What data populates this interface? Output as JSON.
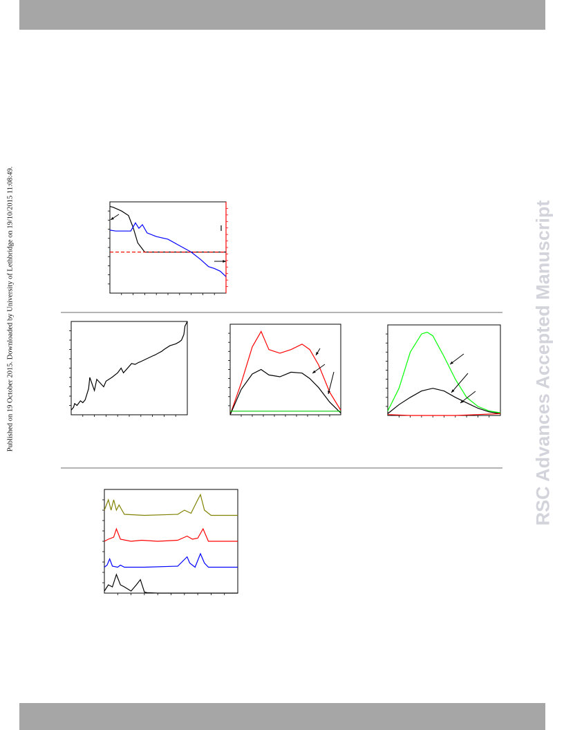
{
  "header": {
    "band_color": "#a6a6a6"
  },
  "side_notice": "Published on 19 October 2015. Downloaded by University of Lethbridge on 19/10/2015 11:08:49.",
  "watermark": "RSC Advances Accepted Manuscript",
  "colors": {
    "black": "#000000",
    "blue": "#0000ff",
    "red": "#ff0000",
    "green": "#00cc00",
    "olive": "#808000",
    "rule": "#b3b3b3",
    "watermark": "#d3d3db"
  },
  "figures": {
    "panel_a": {
      "chart_data": {
        "type": "line",
        "dual_axis": true,
        "series": [
          {
            "color": "#000000",
            "x": [
              0,
              0.03,
              0.1,
              0.16,
              0.2,
              0.24,
              0.3,
              0.38,
              0.45,
              0.5,
              0.6,
              0.7,
              0.8,
              0.9,
              1
            ],
            "y": [
              0.95,
              0.94,
              0.9,
              0.85,
              0.72,
              0.55,
              0.45,
              0.45,
              0.45,
              0.45,
              0.45,
              0.45,
              0.45,
              0.45,
              0.45
            ]
          },
          {
            "color": "#0000ff",
            "x": [
              0,
              0.05,
              0.12,
              0.18,
              0.22,
              0.25,
              0.28,
              0.32,
              0.4,
              0.5,
              0.6,
              0.7,
              0.78,
              0.85,
              0.9,
              0.95,
              1
            ],
            "y": [
              0.69,
              0.68,
              0.68,
              0.68,
              0.77,
              0.71,
              0.75,
              0.66,
              0.62,
              0.59,
              0.52,
              0.45,
              0.37,
              0.29,
              0.27,
              0.24,
              0.18
            ]
          },
          {
            "color": "#ff0000",
            "style": "dashed",
            "x": [
              0,
              1
            ],
            "y": [
              0.45,
              0.45
            ]
          }
        ]
      }
    },
    "panel_b": {
      "chart_data": {
        "type": "line",
        "series": [
          {
            "color": "#000000",
            "x": [
              0,
              0.02,
              0.03,
              0.05,
              0.08,
              0.1,
              0.12,
              0.15,
              0.16,
              0.2,
              0.22,
              0.25,
              0.28,
              0.3,
              0.35,
              0.4,
              0.43,
              0.45,
              0.5,
              0.52,
              0.55,
              0.58,
              0.6,
              0.65,
              0.7,
              0.72,
              0.75,
              0.78,
              0.8,
              0.85,
              0.9,
              0.93,
              0.95,
              0.97,
              0.98,
              1
            ],
            "y": [
              0.05,
              0.08,
              0.12,
              0.1,
              0.15,
              0.13,
              0.16,
              0.28,
              0.4,
              0.26,
              0.38,
              0.34,
              0.3,
              0.36,
              0.4,
              0.45,
              0.5,
              0.45,
              0.52,
              0.55,
              0.54,
              0.56,
              0.57,
              0.6,
              0.63,
              0.64,
              0.66,
              0.68,
              0.7,
              0.74,
              0.76,
              0.78,
              0.8,
              0.86,
              0.95,
              1
            ]
          }
        ]
      }
    },
    "panel_c": {
      "chart_data": {
        "type": "line",
        "series": [
          {
            "color": "#ff0000",
            "x": [
              0,
              0.1,
              0.2,
              0.28,
              0.35,
              0.45,
              0.55,
              0.65,
              0.72,
              0.8,
              0.9,
              1
            ],
            "y": [
              0.0,
              0.35,
              0.75,
              0.92,
              0.72,
              0.68,
              0.72,
              0.78,
              0.72,
              0.55,
              0.25,
              0.05
            ]
          },
          {
            "color": "#000000",
            "x": [
              0,
              0.1,
              0.2,
              0.28,
              0.35,
              0.45,
              0.55,
              0.65,
              0.72,
              0.8,
              0.9,
              1
            ],
            "y": [
              0.0,
              0.28,
              0.45,
              0.5,
              0.44,
              0.42,
              0.47,
              0.46,
              0.4,
              0.3,
              0.14,
              0.02
            ]
          },
          {
            "color": "#00cc00",
            "x": [
              0,
              0.2,
              0.4,
              0.6,
              0.8,
              1
            ],
            "y": [
              0.04,
              0.04,
              0.04,
              0.04,
              0.04,
              0.04
            ]
          }
        ]
      }
    },
    "panel_d": {
      "chart_data": {
        "type": "line",
        "series": [
          {
            "color": "#00ff00",
            "x": [
              0,
              0.1,
              0.2,
              0.3,
              0.35,
              0.4,
              0.5,
              0.6,
              0.7,
              0.8,
              0.9,
              1
            ],
            "y": [
              0.05,
              0.3,
              0.7,
              0.9,
              0.92,
              0.88,
              0.65,
              0.4,
              0.2,
              0.1,
              0.05,
              0.03
            ]
          },
          {
            "color": "#000000",
            "x": [
              0,
              0.1,
              0.2,
              0.3,
              0.4,
              0.5,
              0.6,
              0.7,
              0.8,
              0.9,
              1
            ],
            "y": [
              0.02,
              0.12,
              0.2,
              0.27,
              0.3,
              0.27,
              0.2,
              0.14,
              0.08,
              0.04,
              0.02
            ]
          },
          {
            "color": "#ff0000",
            "x": [
              0,
              0.2,
              0.4,
              0.6,
              0.8,
              1
            ],
            "y": [
              0.01,
              0.0,
              0.0,
              0.0,
              0.01,
              0.02
            ]
          }
        ]
      }
    },
    "panel_e": {
      "chart_data": {
        "type": "line",
        "stacked_offsets": true,
        "series": [
          {
            "color": "#808000",
            "offset": 0.75,
            "x": [
              0,
              0.03,
              0.05,
              0.07,
              0.09,
              0.11,
              0.15,
              0.3,
              0.55,
              0.6,
              0.65,
              0.7,
              0.72,
              0.75,
              0.8,
              1
            ],
            "y": [
              0.05,
              0.15,
              0.05,
              0.15,
              0.05,
              0.1,
              0.01,
              0.0,
              0.01,
              0.05,
              0.02,
              0.15,
              0.2,
              0.05,
              0.0,
              0.0
            ]
          },
          {
            "color": "#ff0000",
            "offset": 0.5,
            "x": [
              0,
              0.03,
              0.07,
              0.09,
              0.12,
              0.2,
              0.28,
              0.4,
              0.55,
              0.62,
              0.66,
              0.7,
              0.74,
              0.78,
              1
            ],
            "y": [
              0.0,
              0.02,
              0.04,
              0.12,
              0.02,
              0.0,
              0.01,
              0.0,
              0.01,
              0.05,
              0.02,
              0.03,
              0.12,
              0.0,
              0.0
            ]
          },
          {
            "color": "#0000ff",
            "offset": 0.25,
            "x": [
              0,
              0.02,
              0.04,
              0.06,
              0.1,
              0.12,
              0.15,
              0.3,
              0.55,
              0.62,
              0.64,
              0.68,
              0.72,
              0.75,
              0.78,
              1
            ],
            "y": [
              0.0,
              0.02,
              0.08,
              0.01,
              0.0,
              0.02,
              0.0,
              0.0,
              0.01,
              0.1,
              0.04,
              0.0,
              0.13,
              0.04,
              0.0,
              0.0
            ]
          },
          {
            "color": "#000000",
            "offset": 0.0,
            "x": [
              0,
              0.03,
              0.06,
              0.09,
              0.12,
              0.15,
              0.2,
              0.24,
              0.27,
              0.29,
              0.3,
              0.32,
              0.4,
              0.6,
              1
            ],
            "y": [
              0.02,
              0.08,
              0.06,
              0.18,
              0.08,
              0.06,
              0.02,
              0.08,
              0.13,
              0.05,
              0.01,
              0.005,
              0.0,
              0.0,
              0.0
            ]
          }
        ]
      }
    }
  }
}
